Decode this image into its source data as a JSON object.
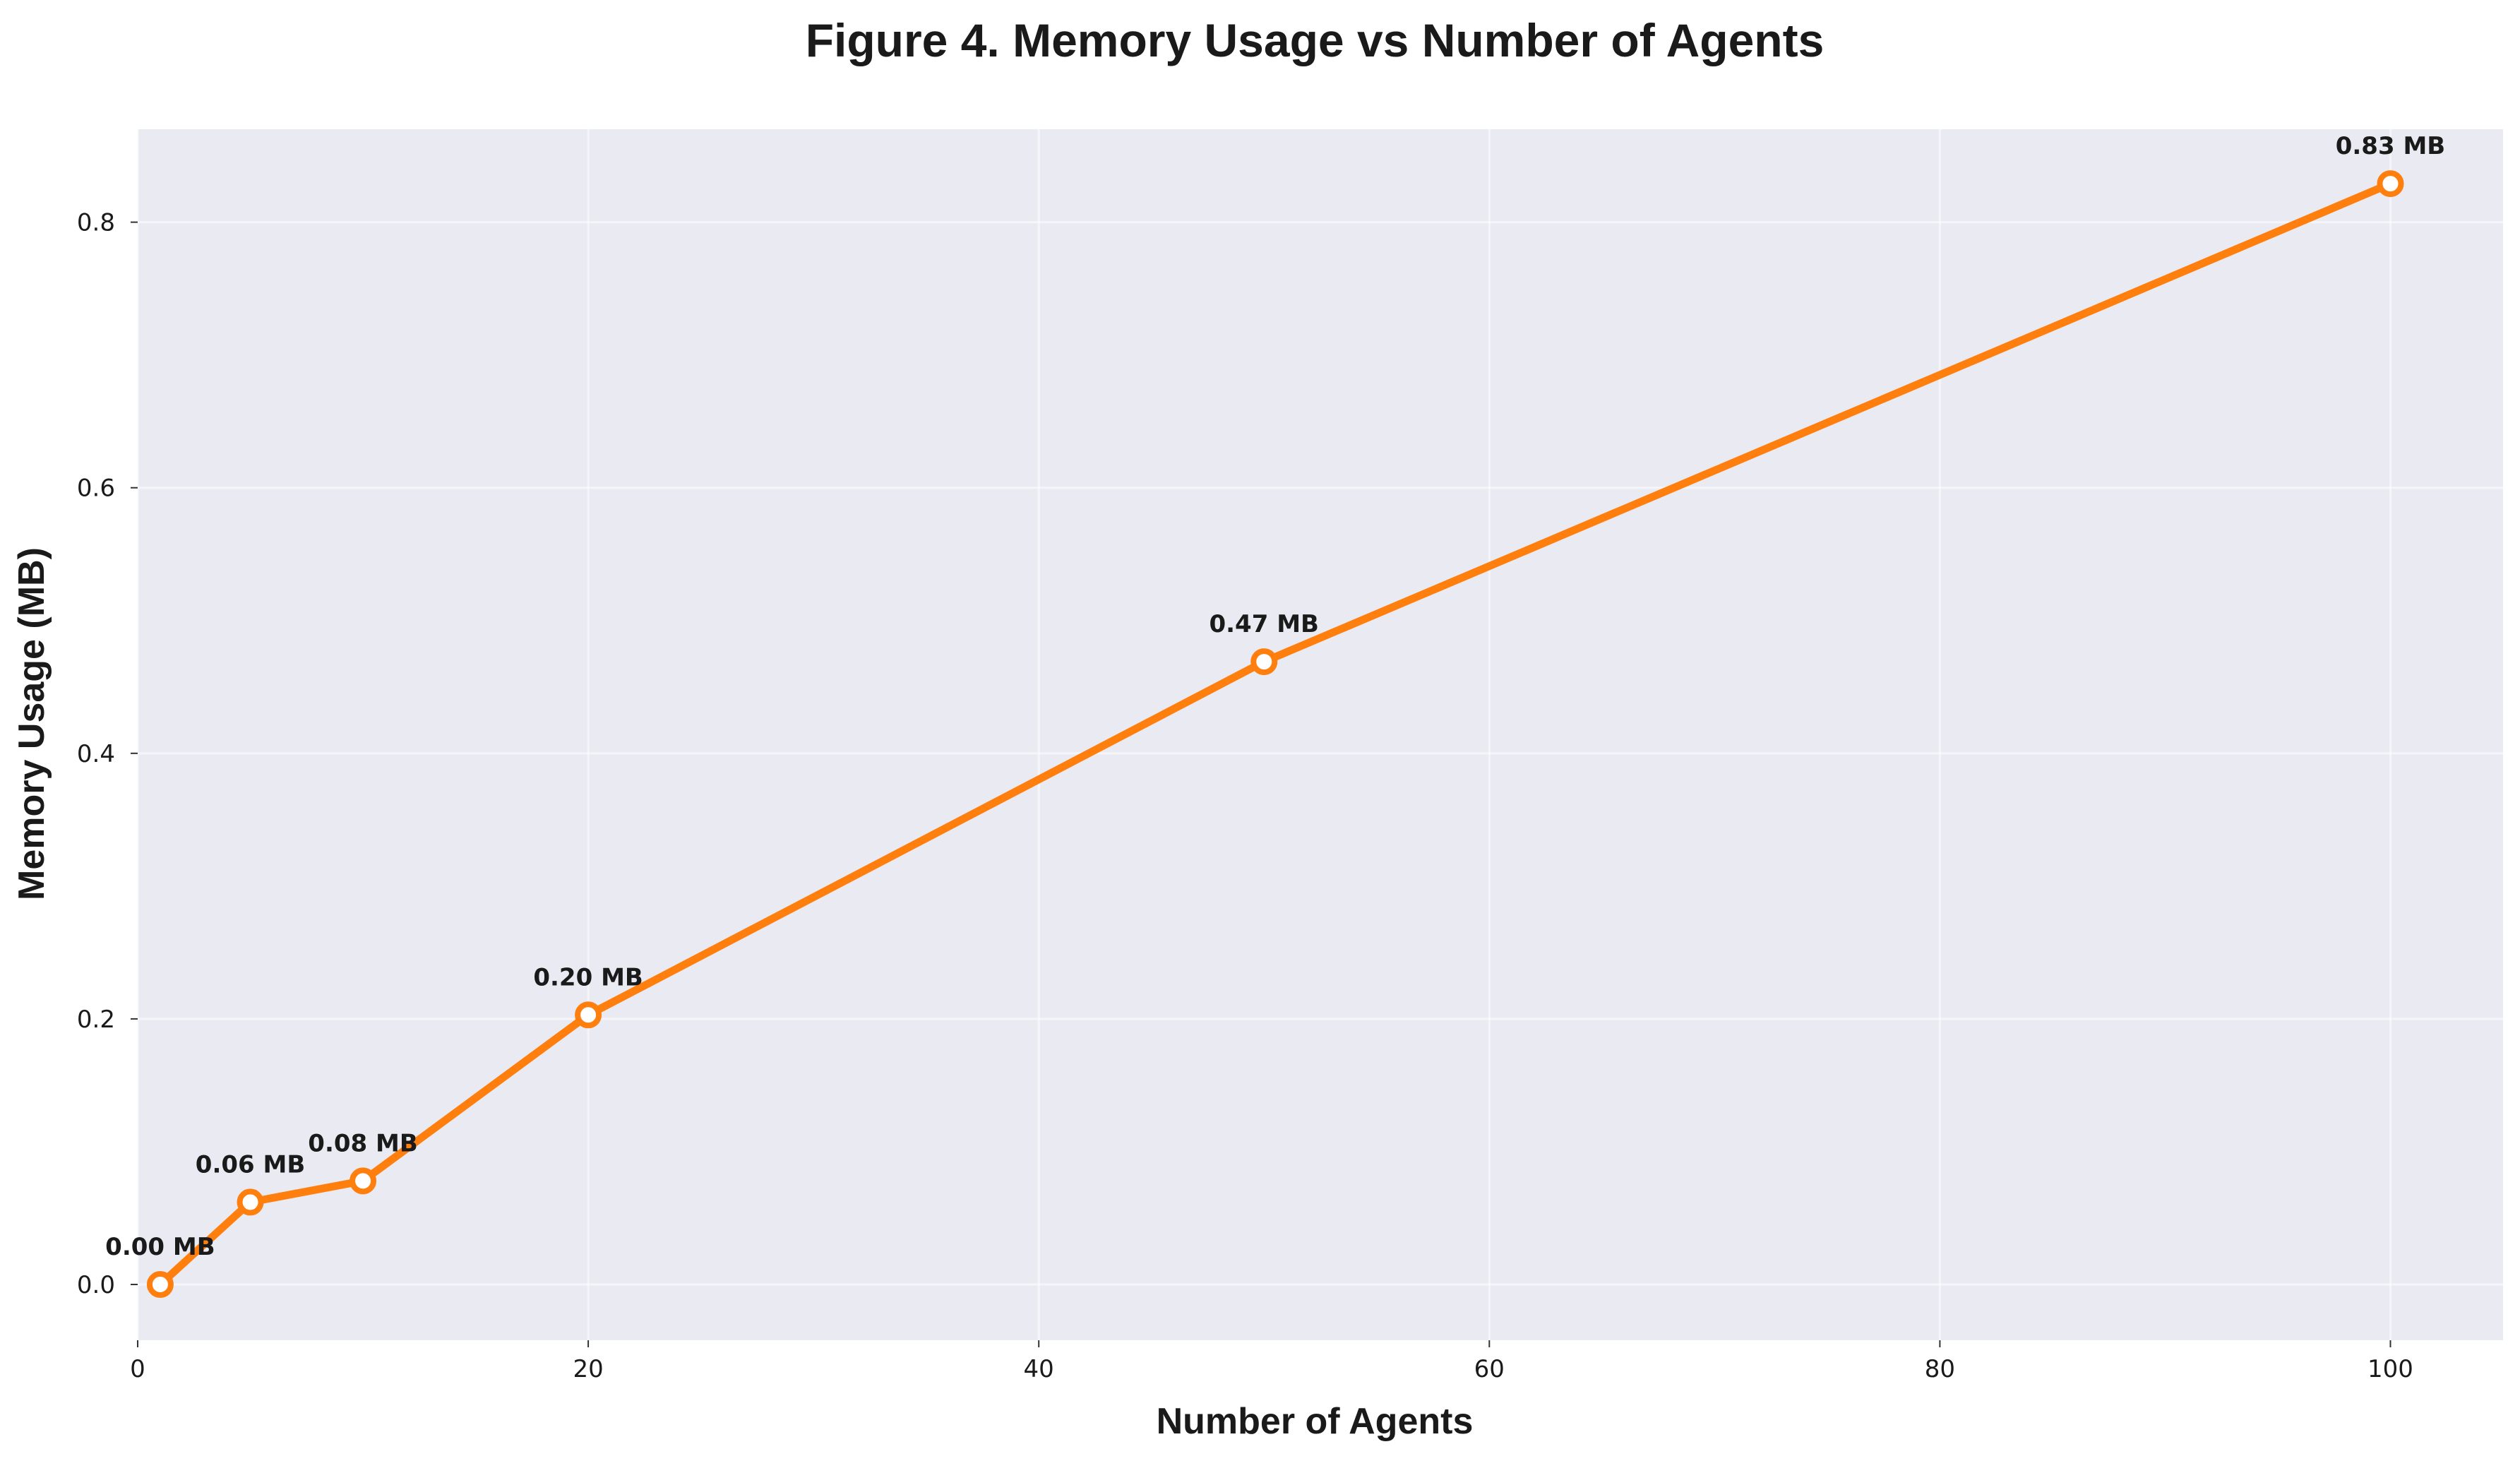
{
  "chart_data": {
    "type": "line",
    "title": "Figure 4. Memory Usage vs Number of Agents",
    "xlabel": "Number of Agents",
    "ylabel": "Memory Usage (MB)",
    "xlim": [
      0,
      105
    ],
    "ylim": [
      -0.042,
      0.87
    ],
    "x_ticks": [
      0,
      20,
      40,
      60,
      80,
      100
    ],
    "x_tick_labels": [
      "0",
      "20",
      "40",
      "60",
      "80",
      "100"
    ],
    "y_ticks": [
      0.0,
      0.2,
      0.4,
      0.6,
      0.8
    ],
    "y_tick_labels": [
      "0.0",
      "0.2",
      "0.4",
      "0.6",
      "0.8"
    ],
    "grid": true,
    "legend": "none",
    "series": [
      {
        "color": "#ff7f0e",
        "x": [
          1,
          5,
          10,
          20,
          50,
          100
        ],
        "y": [
          0.0,
          0.062,
          0.078,
          0.203,
          0.469,
          0.829
        ],
        "labels": [
          "0.00 MB",
          "0.06 MB",
          "0.08 MB",
          "0.20 MB",
          "0.47 MB",
          "0.83 MB"
        ]
      }
    ]
  }
}
